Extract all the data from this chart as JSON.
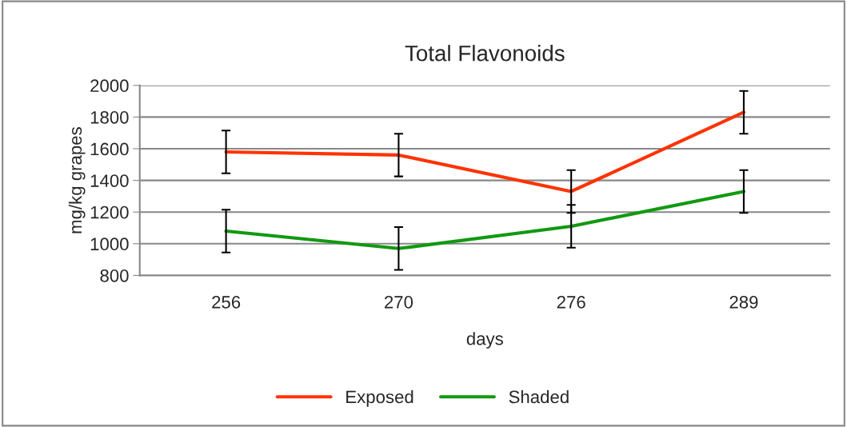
{
  "chart_data": {
    "type": "line",
    "title": "Total Flavonoids",
    "xlabel": "days",
    "ylabel": "mg/kg grapes",
    "categories": [
      "256",
      "270",
      "276",
      "289"
    ],
    "series": [
      {
        "name": "Exposed",
        "color": "#ff3300",
        "values": [
          1580,
          1560,
          1330,
          1830
        ],
        "errors": [
          135,
          135,
          135,
          135
        ]
      },
      {
        "name": "Shaded",
        "color": "#119911",
        "values": [
          1080,
          970,
          1110,
          1330
        ],
        "errors": [
          135,
          135,
          135,
          135
        ]
      }
    ],
    "ylim": [
      800,
      2000
    ],
    "yticks": [
      800,
      1000,
      1200,
      1400,
      1600,
      1800,
      2000
    ],
    "grid": "y",
    "legend": "bottom",
    "marker": "none"
  }
}
